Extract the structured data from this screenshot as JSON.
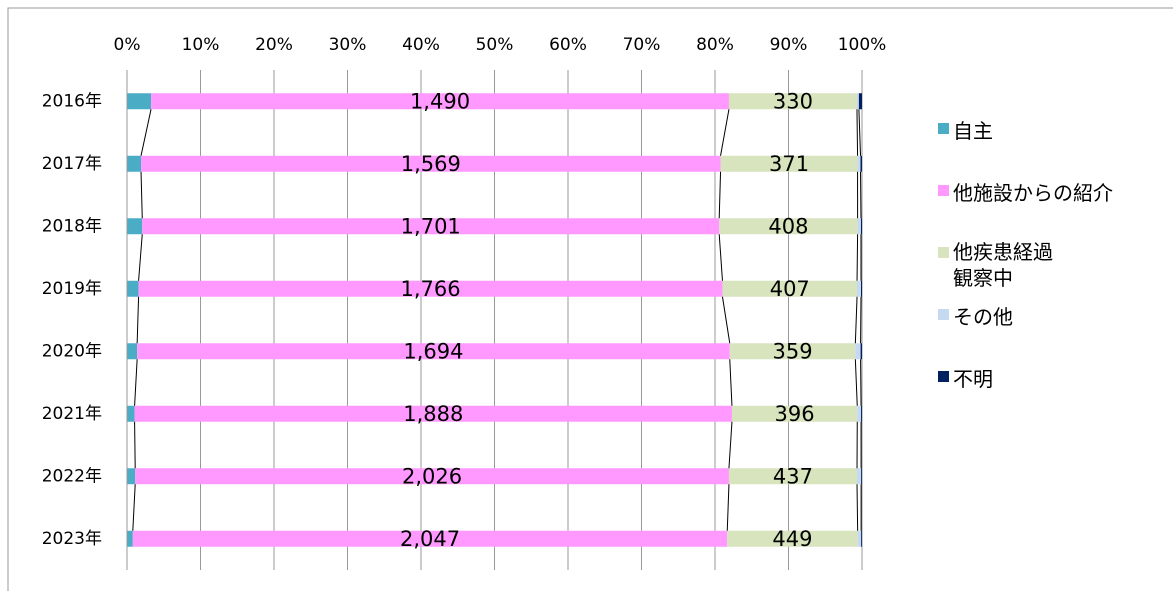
{
  "chart_data": {
    "type": "bar100h",
    "categories": [
      "2016年",
      "2017年",
      "2018年",
      "2019年",
      "2020年",
      "2021年",
      "2022年",
      "2023年"
    ],
    "series": [
      {
        "name": "自主",
        "color": "#4bacc6",
        "values": [
          62,
          38,
          45,
          35,
          29,
          24,
          28,
          20
        ]
      },
      {
        "name": "他施設からの紹介",
        "color": "#ff99ff",
        "values": [
          1490,
          1569,
          1701,
          1766,
          1694,
          1888,
          2026,
          2047
        ],
        "value_labels": [
          "1,490",
          "1,569",
          "1,701",
          "1,766",
          "1,694",
          "1,888",
          "2,026",
          "2,047"
        ]
      },
      {
        "name": "他疾患経過観察中",
        "color": "#d7e4bd",
        "values": [
          330,
          371,
          408,
          407,
          359,
          396,
          437,
          449
        ]
      },
      {
        "name": "その他",
        "color": "#c6d9f1",
        "values": [
          5,
          8,
          10,
          12,
          15,
          12,
          14,
          12
        ]
      },
      {
        "name": "不明",
        "color": "#002060",
        "values": [
          8,
          4,
          3,
          3,
          4,
          3,
          3,
          3
        ]
      }
    ],
    "xlim": [
      0,
      100
    ],
    "xticks": [
      {
        "value": 0,
        "label": "0%"
      },
      {
        "value": 10,
        "label": "10%"
      },
      {
        "value": 20,
        "label": "20%"
      },
      {
        "value": 30,
        "label": "30%"
      },
      {
        "value": 40,
        "label": "40%"
      },
      {
        "value": 50,
        "label": "50%"
      },
      {
        "value": 60,
        "label": "60%"
      },
      {
        "value": 70,
        "label": "70%"
      },
      {
        "value": 80,
        "label": "80%"
      },
      {
        "value": 90,
        "label": "90%"
      },
      {
        "value": 100,
        "label": "100%"
      }
    ],
    "grid": true,
    "legend": "right"
  }
}
